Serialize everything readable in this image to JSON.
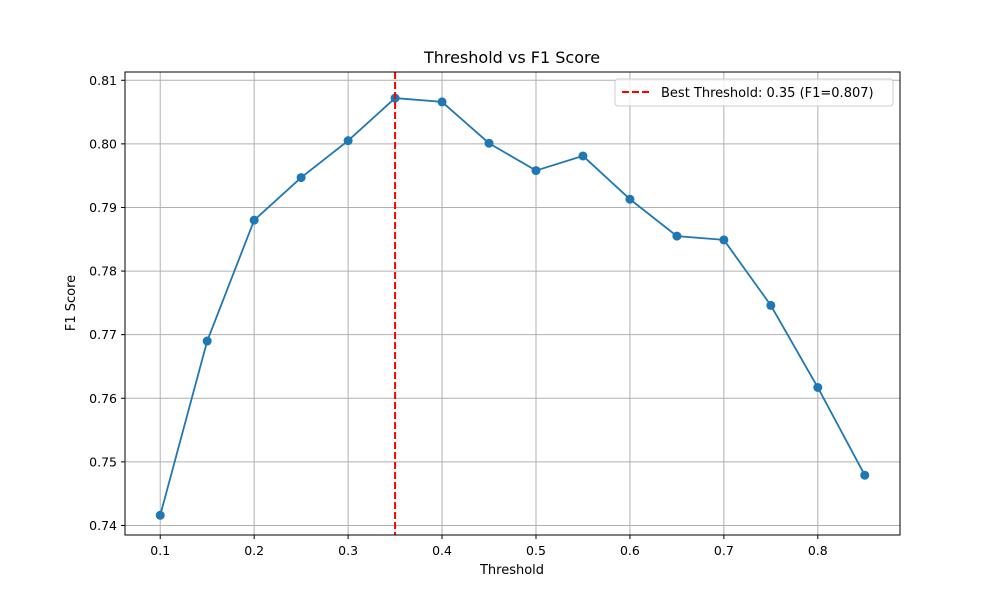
{
  "chart_data": {
    "type": "line",
    "title": "Threshold vs F1 Score",
    "xlabel": "Threshold",
    "ylabel": "F1 Score",
    "xlim": [
      0.0625,
      0.8875
    ],
    "ylim": [
      0.7385,
      0.8113
    ],
    "x_ticks": [
      0.1,
      0.2,
      0.3,
      0.4,
      0.5,
      0.6,
      0.7,
      0.8
    ],
    "x_tick_labels": [
      "0.1",
      "0.2",
      "0.3",
      "0.4",
      "0.5",
      "0.6",
      "0.7",
      "0.8"
    ],
    "y_ticks": [
      0.74,
      0.75,
      0.76,
      0.77,
      0.78,
      0.79,
      0.8,
      0.81
    ],
    "y_tick_labels": [
      "0.74",
      "0.75",
      "0.76",
      "0.77",
      "0.78",
      "0.79",
      "0.80",
      "0.81"
    ],
    "grid": true,
    "series": [
      {
        "color": "#1f77b4",
        "marker": "circle",
        "x": [
          0.1,
          0.15,
          0.2,
          0.25,
          0.3,
          0.35,
          0.4,
          0.45,
          0.5,
          0.55,
          0.6,
          0.65,
          0.7,
          0.75,
          0.8,
          0.85
        ],
        "y": [
          0.7416,
          0.769,
          0.788,
          0.7947,
          0.8005,
          0.8072,
          0.8066,
          0.8001,
          0.7958,
          0.7981,
          0.7913,
          0.7855,
          0.7849,
          0.7746,
          0.7617,
          0.7479
        ]
      }
    ],
    "reference_line": {
      "orientation": "vertical",
      "x": 0.35,
      "color": "#ff0000",
      "style": "dashed",
      "label": "Best Threshold: 0.35 (F1=0.807)"
    },
    "legend": {
      "placement": "top-right"
    }
  }
}
